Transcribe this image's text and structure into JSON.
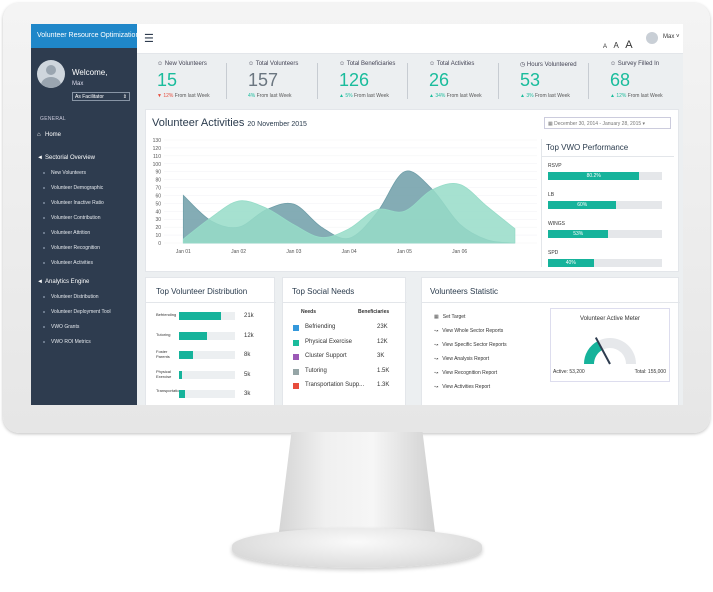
{
  "app": {
    "title": "Volunteer Resource Optimization"
  },
  "profile": {
    "welcome": "Welcome,",
    "name": "Max",
    "role": "As Facilitator"
  },
  "sidebar": {
    "section_general": "GENERAL",
    "home": "Home",
    "sectorial_overview": "Sectorial Overview",
    "sectorial_items": [
      "New Volunteers",
      "Volunteer Demographic",
      "Volunteer Inactive Ratio",
      "Volunteer Contribution",
      "Volunteer Attrition",
      "Volunteer Recognition",
      "Volunteer Activities"
    ],
    "analytics_engine": "Analytics Engine",
    "analytics_items": [
      "Volunteer Distribution",
      "Volunteer Deployment Tool",
      "VWO Grants",
      "VWO ROI Metrics"
    ]
  },
  "topbar": {
    "font_sizes": [
      "A",
      "A",
      "A"
    ],
    "user": "Max"
  },
  "stats": [
    {
      "label": "New Volunteers",
      "value": "15",
      "change": "12%",
      "suffix": " From last Week",
      "dir": "down"
    },
    {
      "label": "Total Volunteers",
      "value": "157",
      "change": "4%",
      "suffix": " From last Week",
      "dir": "none"
    },
    {
      "label": "Total Beneficiaries",
      "value": "126",
      "change": "5%",
      "suffix": " From last Week",
      "dir": "up"
    },
    {
      "label": "Total Activities",
      "value": "26",
      "change": "34%",
      "suffix": " From last Week",
      "dir": "up"
    },
    {
      "label": "Hours Volunteered",
      "value": "53",
      "change": "3%",
      "suffix": " From last Week",
      "dir": "up"
    },
    {
      "label": "Survey Filled In",
      "value": "68",
      "change": "12%",
      "suffix": " From last Week",
      "dir": "up"
    }
  ],
  "colors": {
    "accent": "#1abc9c",
    "dark": "#2e3c4f",
    "brand": "#1f87c9",
    "down": "#e74c3c",
    "bar": "#16b39b"
  },
  "activities": {
    "title": "Volunteer Activities",
    "date": "20 November 2015",
    "range": "December 30, 2014 - January 28, 2015"
  },
  "chart_data": {
    "type": "area",
    "title": "Volunteer Activities",
    "x_ticks": [
      "Jan 01",
      "Jan 02",
      "Jan 03",
      "Jan 04",
      "Jan 05",
      "Jan 06"
    ],
    "y_ticks": [
      0,
      10,
      20,
      30,
      40,
      50,
      60,
      70,
      80,
      90,
      100,
      110,
      120,
      130
    ],
    "ylim": [
      0,
      130
    ],
    "series": [
      {
        "color": "#6f9ea8",
        "x": [
          0,
          0.5,
          1,
          1.5,
          2,
          2.5,
          3,
          3.5,
          4,
          4.5,
          5,
          5.5,
          6
        ],
        "values": [
          60,
          28,
          20,
          42,
          49,
          20,
          6,
          38,
          90,
          68,
          24,
          4,
          0
        ]
      },
      {
        "color": "#96dcc8",
        "x": [
          0,
          0.5,
          1,
          1.5,
          2,
          2.5,
          3,
          3.5,
          4,
          4.5,
          5,
          5.5,
          6
        ],
        "values": [
          5,
          32,
          53,
          44,
          23,
          7,
          18,
          42,
          40,
          67,
          74,
          46,
          18
        ]
      }
    ]
  },
  "vwo": {
    "title": "Top VWO Performance",
    "items": [
      {
        "name": "RSVP",
        "value": 0.802,
        "label": "80.2%"
      },
      {
        "name": "LB",
        "value": 0.6,
        "label": "60%"
      },
      {
        "name": "WINGS",
        "value": 0.53,
        "label": "53%"
      },
      {
        "name": "SPD",
        "value": 0.4,
        "label": "40%"
      }
    ]
  },
  "distribution": {
    "title": "Top Volunteer Distribution",
    "items": [
      {
        "name": "Befriending",
        "value": 0.75,
        "count": "21k"
      },
      {
        "name": "Tutoring",
        "value": 0.5,
        "count": "12k"
      },
      {
        "name": "Foster Parents",
        "value": 0.25,
        "count": "8k"
      },
      {
        "name": "Physical Exercise",
        "value": 0.06,
        "count": "5k"
      },
      {
        "name": "Transportation",
        "value": 0.1,
        "count": "3k"
      }
    ]
  },
  "needs": {
    "title": "Top Social Needs",
    "headers": [
      "Needs",
      "Beneficiaries"
    ],
    "items": [
      {
        "name": "Befriending",
        "value": "23K",
        "color": "#3498db"
      },
      {
        "name": "Physical Exercise",
        "value": "12K",
        "color": "#1abc9c"
      },
      {
        "name": "Cluster Support",
        "value": "3K",
        "color": "#9b59b6"
      },
      {
        "name": "Tutoring",
        "value": "1.5K",
        "color": "#95a5a6"
      },
      {
        "name": "Transportation Supp...",
        "value": "1.3K",
        "color": "#e74c3c"
      }
    ]
  },
  "statistic": {
    "title": "Volunteers Statistic",
    "links": [
      "Set Target",
      "View Whole Sector Reports",
      "View Specific Sector Reports",
      "View Analysis Report",
      "View Recognition Report",
      "View Activities Report"
    ],
    "meter": {
      "title": "Volunteer Active Meter",
      "active": "Active: 53,200",
      "total": "Total: 155,000",
      "active_value": 53200,
      "total_value": 155000
    }
  }
}
